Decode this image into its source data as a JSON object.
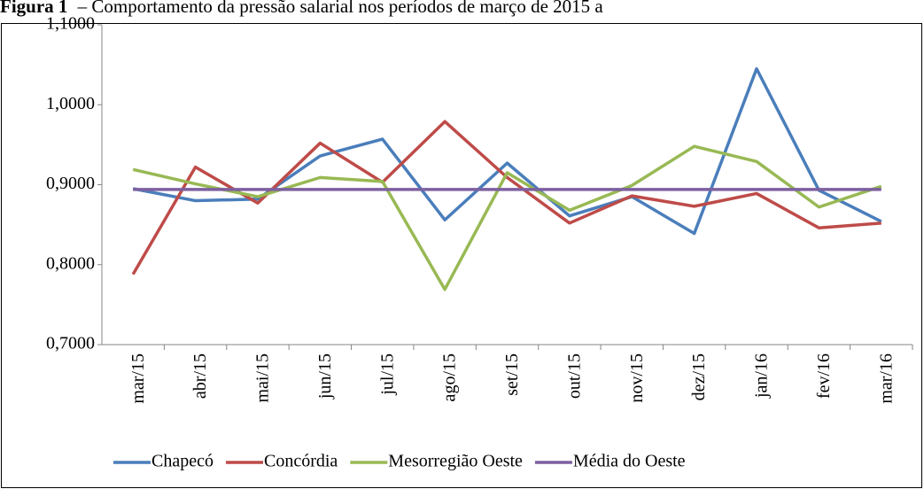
{
  "chart_data": {
    "type": "line",
    "figure_label": "Figura 1",
    "title": "– Comportamento da pressão salarial nos períodos de março de 2015 a",
    "categories": [
      "mar/15",
      "abr/15",
      "mai/15",
      "jun/15",
      "jul/15",
      "ago/15",
      "set/15",
      "out/15",
      "nov/15",
      "dez/15",
      "jan/16",
      "fev/16",
      "mar/16"
    ],
    "series": [
      {
        "name": "Chapecó",
        "color": "#4a7ebb",
        "values": [
          0.895,
          0.88,
          0.882,
          0.936,
          0.957,
          0.856,
          0.927,
          0.861,
          0.885,
          0.839,
          1.045,
          0.893,
          0.854
        ]
      },
      {
        "name": "Concórdia",
        "color": "#be4b48",
        "values": [
          0.788,
          0.922,
          0.877,
          0.952,
          0.903,
          0.979,
          0.909,
          0.852,
          0.886,
          0.873,
          0.889,
          0.846,
          0.852
        ]
      },
      {
        "name": "Mesorregião Oeste",
        "color": "#98b954",
        "values": [
          0.919,
          0.901,
          0.885,
          0.909,
          0.904,
          0.769,
          0.915,
          0.868,
          0.899,
          0.948,
          0.929,
          0.872,
          0.898
        ]
      },
      {
        "name": "Média do Oeste",
        "color": "#7d60a0",
        "values": [
          0.894,
          0.894,
          0.894,
          0.894,
          0.894,
          0.894,
          0.894,
          0.894,
          0.894,
          0.894,
          0.894,
          0.894,
          0.894
        ]
      }
    ],
    "ylim": [
      0.7,
      1.1
    ],
    "yticks": [
      {
        "value": 0.7,
        "label": "0,7000"
      },
      {
        "value": 0.8,
        "label": "0,8000"
      },
      {
        "value": 0.9,
        "label": "0,9000"
      },
      {
        "value": 1.0,
        "label": "1,0000"
      },
      {
        "value": 1.1,
        "label": "1,1000"
      }
    ],
    "grid": false,
    "legend": "bottom"
  }
}
